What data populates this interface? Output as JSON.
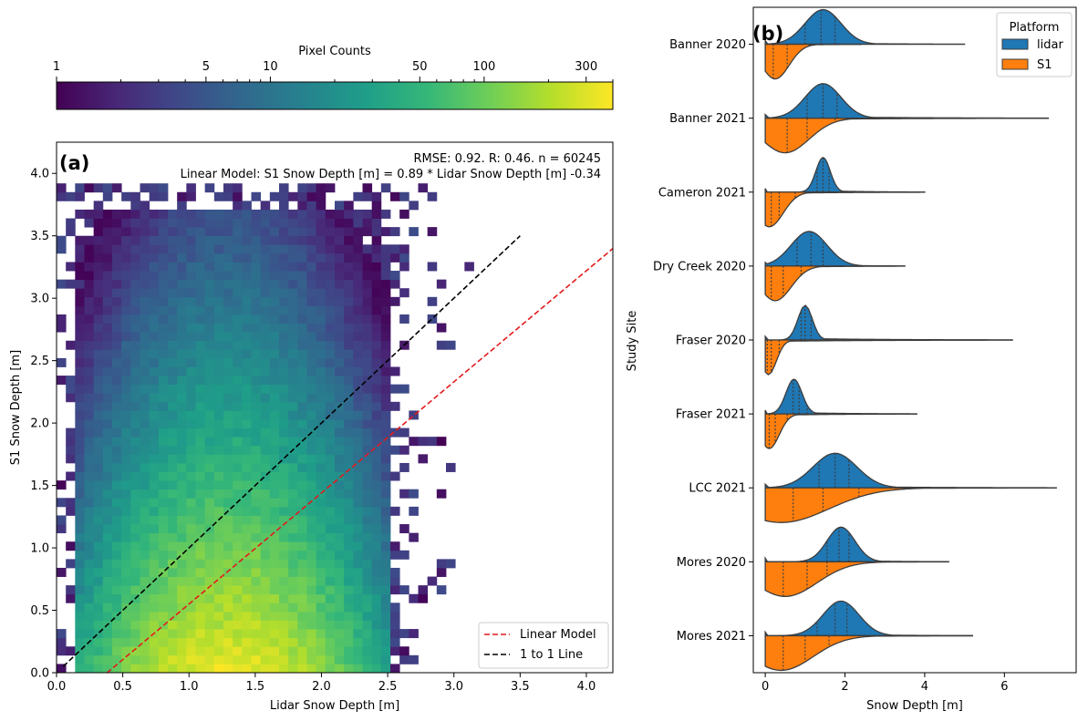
{
  "colors": {
    "viridis": [
      "#440154",
      "#482878",
      "#3e4a89",
      "#31688e",
      "#26828e",
      "#1f9e89",
      "#35b779",
      "#6ece58",
      "#b5de2b",
      "#fde725"
    ],
    "lidar": "#1f77b4",
    "s1": "#ff7f0e",
    "linear_model": "#e31a1c",
    "one_to_one": "#000000",
    "violin_edge": "#3d3d3d"
  },
  "chart_data": [
    {
      "type": "heatmap",
      "panel_label": "(a)",
      "xlabel": "Lidar Snow Depth [m]",
      "ylabel": "S1 Snow Depth [m]",
      "xlim": [
        0.0,
        4.2
      ],
      "ylim": [
        0.0,
        4.25
      ],
      "xticks": [
        0.0,
        0.5,
        1.0,
        1.5,
        2.0,
        2.5,
        3.0,
        3.5,
        4.0
      ],
      "xtick_labels": [
        "0.0",
        "0.5",
        "1.0",
        "1.5",
        "2.0",
        "2.5",
        "3.0",
        "3.5",
        "4.0"
      ],
      "yticks": [
        0.0,
        0.5,
        1.0,
        1.5,
        2.0,
        2.5,
        3.0,
        3.5,
        4.0
      ],
      "ytick_labels": [
        "0.0",
        "0.5",
        "1.0",
        "1.5",
        "2.0",
        "2.5",
        "3.0",
        "3.5",
        "4.0"
      ],
      "bin_size": 0.07,
      "stats_text": "RMSE: 0.92. R: 0.46. n = 60245",
      "model_text": "Linear Model: S1 Snow Depth [m] = 0.89 * Lidar Snow Depth [m] -0.34",
      "linear_model": {
        "slope": 0.89,
        "intercept": -0.34,
        "x_range": [
          0.38,
          4.2
        ]
      },
      "one_to_one": {
        "x_range": [
          0.05,
          3.5
        ]
      },
      "legend": [
        "Linear Model",
        "1 to 1 Line"
      ],
      "legend_position": "lower-right",
      "colorbar": {
        "label": "Pixel Counts",
        "scale": "log",
        "range": [
          1,
          400
        ],
        "ticks": [
          1,
          5,
          10,
          50,
          100,
          300
        ],
        "tick_labels": [
          "1",
          "5",
          "10",
          "50",
          "100",
          "300"
        ]
      },
      "density": {
        "center_x": 1.3,
        "sigma_x": 0.55,
        "decay_y": 0.85,
        "peak_count": 340,
        "core_x_range": [
          0.15,
          2.5
        ],
        "core_y_max": 3.7
      }
    },
    {
      "type": "violin",
      "panel_label": "(b)",
      "xlabel": "Snow Depth [m]",
      "ylabel": "Study Site",
      "xlim": [
        -0.3,
        7.8
      ],
      "xticks": [
        0,
        2,
        4,
        6
      ],
      "xtick_labels": [
        "0",
        "2",
        "4",
        "6"
      ],
      "legend_title": "Platform",
      "legend": [
        "lidar",
        "S1"
      ],
      "legend_position": "top-right",
      "sites": [
        {
          "name": "Banner 2020",
          "lidar": {
            "peak": 1.45,
            "spread": 0.45,
            "max": 5.0,
            "quartiles": [
              1.0,
              1.4,
              1.75
            ]
          },
          "s1": {
            "peak": 0.25,
            "spread": 0.35,
            "max": 2.4,
            "quartiles": [
              0.2,
              0.55,
              1.1
            ]
          }
        },
        {
          "name": "Banner 2021",
          "lidar": {
            "peak": 1.45,
            "spread": 0.45,
            "max": 7.1,
            "quartiles": [
              1.05,
              1.45,
              1.8
            ]
          },
          "s1": {
            "peak": 0.5,
            "spread": 0.6,
            "max": 7.1,
            "quartiles": [
              0.55,
              1.05,
              1.75
            ]
          }
        },
        {
          "name": "Cameron 2021",
          "lidar": {
            "peak": 1.45,
            "spread": 0.18,
            "max": 4.0,
            "quartiles": [
              1.3,
              1.45,
              1.6
            ]
          },
          "s1": {
            "peak": 0.1,
            "spread": 0.35,
            "max": 4.0,
            "quartiles": [
              0.15,
              0.35,
              0.75
            ]
          }
        },
        {
          "name": "Dry Creek 2020",
          "lidar": {
            "peak": 1.1,
            "spread": 0.45,
            "max": 3.5,
            "quartiles": [
              0.8,
              1.15,
              1.45
            ]
          },
          "s1": {
            "peak": 0.25,
            "spread": 0.4,
            "max": 3.5,
            "quartiles": [
              0.15,
              0.45,
              0.9
            ]
          }
        },
        {
          "name": "Fraser 2020",
          "lidar": {
            "peak": 1.0,
            "spread": 0.18,
            "max": 6.2,
            "quartiles": [
              0.9,
              1.0,
              1.15
            ]
          },
          "s1": {
            "peak": 0.08,
            "spread": 0.2,
            "max": 6.2,
            "quartiles": [
              0.05,
              0.15,
              0.35
            ]
          }
        },
        {
          "name": "Fraser 2021",
          "lidar": {
            "peak": 0.72,
            "spread": 0.2,
            "max": 3.8,
            "quartiles": [
              0.7,
              0.85,
              1.05
            ]
          },
          "s1": {
            "peak": 0.1,
            "spread": 0.25,
            "max": 3.8,
            "quartiles": [
              0.1,
              0.25,
              0.55
            ]
          }
        },
        {
          "name": "LCC 2021",
          "lidar": {
            "peak": 1.75,
            "spread": 0.55,
            "max": 7.3,
            "quartiles": [
              1.35,
              1.75,
              2.1
            ]
          },
          "s1": {
            "peak": 0.4,
            "spread": 1.2,
            "max": 7.3,
            "quartiles": [
              0.7,
              1.45,
              2.35
            ]
          }
        },
        {
          "name": "Mores 2020",
          "lidar": {
            "peak": 1.9,
            "spread": 0.35,
            "max": 4.6,
            "quartiles": [
              1.55,
              1.85,
              2.1
            ]
          },
          "s1": {
            "peak": 0.5,
            "spread": 0.8,
            "max": 4.6,
            "quartiles": [
              0.45,
              1.05,
              1.55
            ]
          }
        },
        {
          "name": "Mores 2021",
          "lidar": {
            "peak": 1.9,
            "spread": 0.45,
            "max": 5.2,
            "quartiles": [
              1.3,
              1.75,
              2.05
            ]
          },
          "s1": {
            "peak": 0.4,
            "spread": 0.8,
            "max": 5.2,
            "quartiles": [
              0.45,
              1.0,
              1.6
            ]
          }
        }
      ]
    }
  ]
}
